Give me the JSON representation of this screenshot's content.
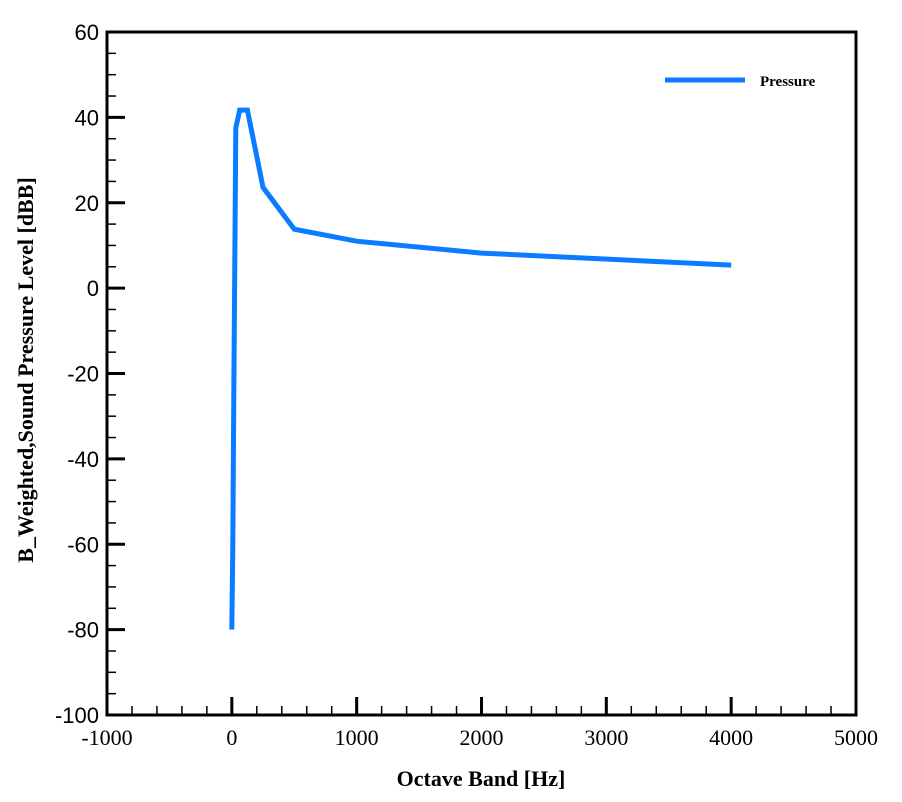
{
  "chart_data": {
    "type": "line",
    "title": "",
    "xlabel": "Octave Band [Hz]",
    "ylabel": "B_Weighted,Sound Pressure Level [dBB]",
    "xlim": [
      -1000,
      5000
    ],
    "ylim": [
      -100,
      60
    ],
    "x_ticks": [
      -1000,
      0,
      1000,
      2000,
      3000,
      4000,
      5000
    ],
    "x_tick_labels": [
      "-1000",
      "0",
      "1000",
      "2000",
      "3000",
      "4000",
      "5000"
    ],
    "x_minor_step": 200,
    "y_ticks": [
      -100,
      -80,
      -60,
      -40,
      -20,
      0,
      20,
      40,
      60
    ],
    "y_tick_labels": [
      "-100",
      "-80",
      "-60",
      "-40",
      "-20",
      "0",
      "20",
      "40",
      "60"
    ],
    "y_minor_step": 5,
    "grid": false,
    "legend_position": "upper right",
    "series": [
      {
        "name": "Pressure",
        "color": "#0a7cff",
        "x": [
          0,
          8,
          16,
          31.5,
          63,
          125,
          250,
          500,
          1000,
          2000,
          4000
        ],
        "y": [
          -80,
          -60.5,
          -25,
          37.5,
          41.7,
          41.7,
          23.6,
          13.8,
          11.0,
          8.2,
          5.4
        ]
      }
    ]
  },
  "legend": {
    "items": [
      {
        "label": "Pressure",
        "color": "#0a7cff"
      }
    ]
  }
}
